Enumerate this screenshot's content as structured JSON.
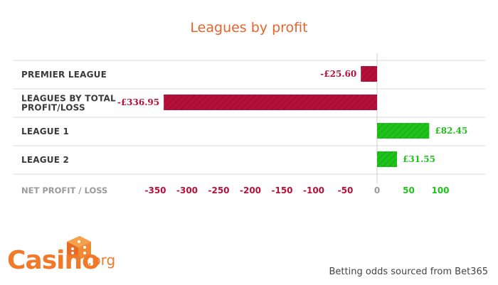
{
  "chart_data": {
    "type": "bar",
    "orientation": "horizontal",
    "title": "Leagues by profit",
    "categories": [
      "PREMIER LEAGUE",
      "LEAGUES BY TOTAL PROFIT/LOSS",
      "LEAGUE 1",
      "LEAGUE 2"
    ],
    "category_lines": [
      [
        "PREMIER LEAGUE"
      ],
      [
        "LEAGUES BY TOTAL",
        "PROFIT/LOSS"
      ],
      [
        "LEAGUE 1"
      ],
      [
        "LEAGUE 2"
      ]
    ],
    "values": [
      -25.6,
      -336.95,
      82.45,
      31.55
    ],
    "data_labels": [
      "-£25.60",
      "-£336.95",
      "£82.45",
      "£31.55"
    ],
    "xlabel": "NET PROFIT / LOSS",
    "xticks": [
      -350,
      -300,
      -250,
      -200,
      -150,
      -100,
      -50,
      0,
      50,
      100
    ],
    "xlim": [
      -350,
      100
    ],
    "grid": true,
    "colors": {
      "negative": "#b5103a",
      "positive": "#1ec21a",
      "title": "#e8632a"
    }
  },
  "logo": {
    "text": "Casino",
    "suffix": ".org"
  },
  "source_note": "Betting odds sourced from Bet365"
}
